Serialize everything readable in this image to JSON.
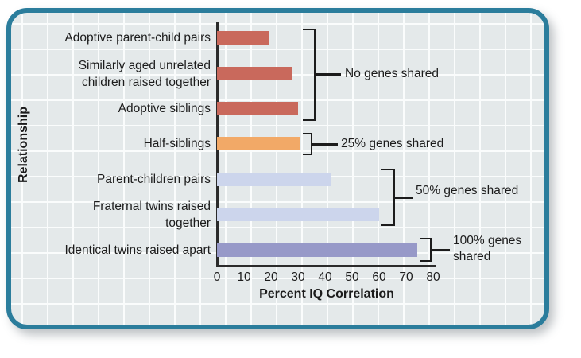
{
  "figure": {
    "type_label": "horizontal-bar-chart",
    "colors": {
      "panel_border": "#2b7d9c",
      "panel_background": "#e4e9ea",
      "grid_line": "#fafcfc",
      "axis_line": "#2b2b2b",
      "text": "#1c1c1c",
      "no_genes_bar": "#c9695c",
      "quarter_genes_bar": "#f2a967",
      "half_genes_bar": "#ccd5ec",
      "full_genes_bar": "#9799c8"
    }
  },
  "chart_data": {
    "type": "bar",
    "orientation": "horizontal",
    "title": "",
    "xlabel": "Percent IQ Correlation",
    "ylabel": "Relationship",
    "xlim": [
      0,
      80
    ],
    "x_ticks": [
      0,
      10,
      20,
      30,
      40,
      50,
      60,
      70,
      80
    ],
    "grid": true,
    "categories": [
      "Adoptive parent-child pairs",
      "Similarly aged unrelated\nchildren raised together",
      "Adoptive siblings",
      "Half-siblings",
      "Parent-children pairs",
      "Fraternal twins raised\ntogether",
      "Identical twins raised apart"
    ],
    "values": [
      19,
      28,
      30,
      31,
      42,
      60,
      74
    ],
    "bar_colors": [
      "#c9695c",
      "#c9695c",
      "#c9695c",
      "#f2a967",
      "#ccd5ec",
      "#ccd5ec",
      "#9799c8"
    ],
    "annotations": [
      {
        "label": "No genes shared",
        "rows": [
          0,
          1,
          2
        ]
      },
      {
        "label": "25% genes shared",
        "rows": [
          3
        ]
      },
      {
        "label": "50% genes shared",
        "rows": [
          4,
          5
        ]
      },
      {
        "label": "100% genes\nshared",
        "rows": [
          6
        ]
      }
    ]
  }
}
